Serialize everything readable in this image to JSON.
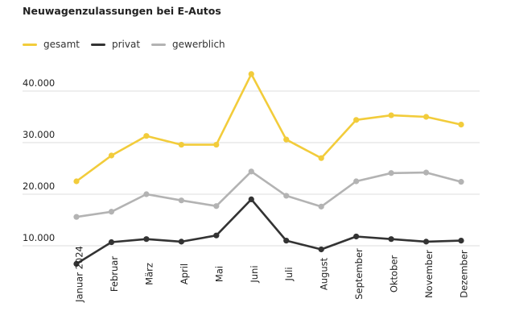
{
  "chart_data": {
    "type": "line",
    "title": "Neuwagenzulassungen bei E-Autos",
    "xlabel": "",
    "ylabel": "",
    "categories": [
      "Januar 2024",
      "Februar",
      "März",
      "April",
      "Mai",
      "Juni",
      "Juli",
      "August",
      "September",
      "Oktober",
      "November",
      "Dezember"
    ],
    "y_ticks": [
      10000,
      20000,
      30000,
      40000
    ],
    "y_tick_labels": [
      "10.000",
      "20.000",
      "30.000",
      "40.000"
    ],
    "ylim": [
      5000,
      46000
    ],
    "grid": true,
    "legend_position": "top-left",
    "series": [
      {
        "name": "gesamt",
        "color": "#f2cc3b",
        "values": [
          22500,
          27500,
          31300,
          29600,
          29600,
          43300,
          30600,
          27000,
          34400,
          35300,
          35000,
          33500
        ]
      },
      {
        "name": "privat",
        "color": "#333333",
        "values": [
          6500,
          10700,
          11300,
          10800,
          12000,
          19000,
          11000,
          9300,
          11800,
          11300,
          10800,
          11000
        ]
      },
      {
        "name": "gewerblich",
        "color": "#b3b3b3",
        "values": [
          15600,
          16600,
          20000,
          18800,
          17700,
          24400,
          19700,
          17600,
          22500,
          24100,
          24200,
          22400
        ]
      }
    ]
  }
}
